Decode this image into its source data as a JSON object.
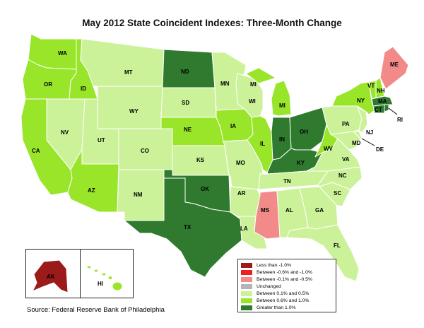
{
  "title": "May 2012 State Coincident Indexes: Three-Month Change",
  "source": "Source: Federal Reserve Bank of Philadelphia",
  "colors": {
    "lt_m1": "#9b1a1a",
    "m06_m1": "#ee2020",
    "m01_m05": "#f28a8a",
    "unch": "#b4b4b4",
    "p01_p05": "#ccf299",
    "p06_p1": "#99e52a",
    "gt_p1": "#2f7a2f"
  },
  "legend": [
    {
      "key": "lt_m1",
      "label": "Less than -1.0%"
    },
    {
      "key": "m06_m1",
      "label": "Between -0.6% and -1.0%"
    },
    {
      "key": "m01_m05",
      "label": "Between -0.1% and -0.5%"
    },
    {
      "key": "unch",
      "label": "Unchanged"
    },
    {
      "key": "p01_p05",
      "label": "Between 0.1% and 0.5%"
    },
    {
      "key": "p06_p1",
      "label": "Between 0.6% and 1.0%"
    },
    {
      "key": "gt_p1",
      "label": "Greater than 1.0%"
    }
  ],
  "states": {
    "WA": "p06_p1",
    "OR": "p06_p1",
    "CA": "p06_p1",
    "ID": "p06_p1",
    "NV": "p01_p05",
    "MT": "p01_p05",
    "WY": "p01_p05",
    "UT": "p01_p05",
    "AZ": "p06_p1",
    "CO": "p01_p05",
    "NM": "p01_p05",
    "ND": "gt_p1",
    "SD": "p01_p05",
    "NE": "p06_p1",
    "KS": "p01_p05",
    "OK": "gt_p1",
    "TX": "gt_p1",
    "MN": "p01_p05",
    "IA": "p06_p1",
    "MO": "p01_p05",
    "AR": "p01_p05",
    "LA": "p01_p05",
    "WI": "p01_p05",
    "IL": "p06_p1",
    "MI": "p06_p1",
    "IN": "gt_p1",
    "OH": "gt_p1",
    "KY": "gt_p1",
    "TN": "p01_p05",
    "MS": "m01_m05",
    "AL": "p01_p05",
    "GA": "p01_p05",
    "FL": "p01_p05",
    "SC": "p01_p05",
    "NC": "p01_p05",
    "VA": "p01_p05",
    "WV": "p06_p1",
    "PA": "p01_p05",
    "NY": "p06_p1",
    "VT": "p06_p1",
    "NH": "p06_p1",
    "ME": "m01_m05",
    "MA": "gt_p1",
    "RI": "gt_p1",
    "CT": "gt_p1",
    "NJ": "p01_p05",
    "DE": "p01_p05",
    "MD": "p01_p05",
    "AK": "lt_m1",
    "HI": "p06_p1"
  },
  "labels": {
    "WA": "WA",
    "OR": "OR",
    "CA": "CA",
    "ID": "ID",
    "NV": "NV",
    "MT": "MT",
    "WY": "WY",
    "UT": "UT",
    "AZ": "AZ",
    "CO": "CO",
    "NM": "NM",
    "ND": "ND",
    "SD": "SD",
    "NE": "NE",
    "KS": "KS",
    "OK": "OK",
    "TX": "TX",
    "MN": "MN",
    "IA": "IA",
    "MO": "MO",
    "AR": "AR",
    "LA": "LA",
    "WI": "WI",
    "IL": "IL",
    "MI_UP": "MI",
    "MI": "MI",
    "IN": "IN",
    "OH": "OH",
    "KY": "KY",
    "TN": "TN",
    "MS": "MS",
    "AL": "AL",
    "GA": "GA",
    "FL": "FL",
    "SC": "SC",
    "NC": "NC",
    "VA": "VA",
    "WV": "WV",
    "PA": "PA",
    "NY": "NY",
    "VT": "VT",
    "NH": "NH",
    "ME": "ME",
    "MA": "MA",
    "RI": "RI",
    "CT": "CT",
    "NJ": "NJ",
    "DE": "DE",
    "MD": "MD",
    "AK": "AK",
    "HI": "HI"
  }
}
